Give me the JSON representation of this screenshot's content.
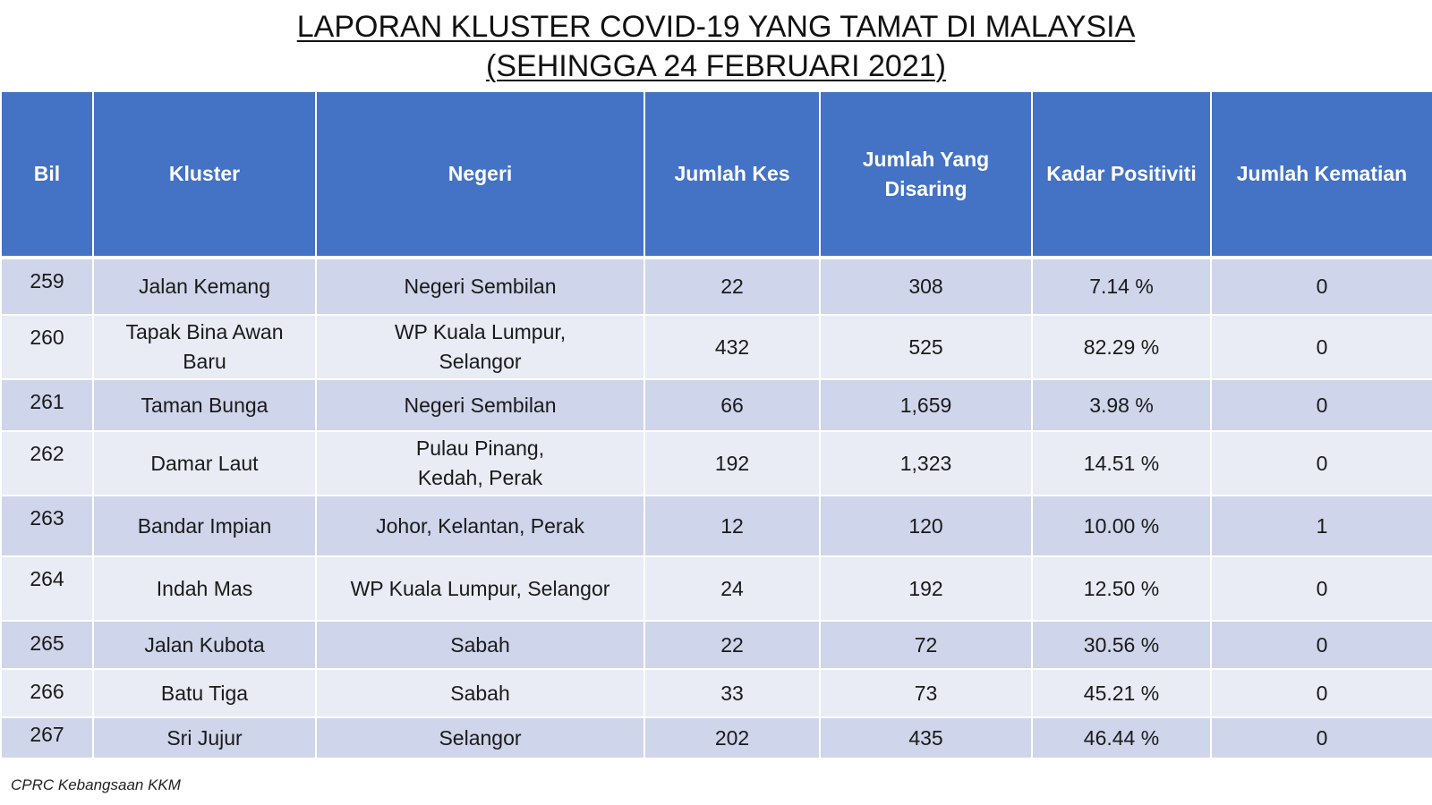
{
  "title": {
    "line1": "LAPORAN KLUSTER COVID-19 YANG TAMAT DI MALAYSIA",
    "line2": "(SEHINGGA  24 FEBRUARI 2021)"
  },
  "table": {
    "headers": [
      "Bil",
      "Kluster",
      "Negeri",
      "Jumlah Kes",
      "Jumlah Yang Disaring",
      "Kadar Positiviti",
      "Jumlah Kematian"
    ],
    "rows": [
      {
        "bil": "259",
        "kluster": "Jalan Kemang",
        "negeri": "Negeri Sembilan",
        "kes": "22",
        "disaring": "308",
        "positiviti": "7.14 %",
        "kematian": "0"
      },
      {
        "bil": "260",
        "kluster": "Tapak Bina Awan Baru",
        "negeri": "WP Kuala Lumpur, Selangor",
        "kes": "432",
        "disaring": "525",
        "positiviti": "82.29 %",
        "kematian": "0"
      },
      {
        "bil": "261",
        "kluster": "Taman Bunga",
        "negeri": "Negeri Sembilan",
        "kes": "66",
        "disaring": "1,659",
        "positiviti": "3.98 %",
        "kematian": "0"
      },
      {
        "bil": "262",
        "kluster": "Damar Laut",
        "negeri": "Pulau Pinang, Kedah, Perak",
        "kes": "192",
        "disaring": "1,323",
        "positiviti": "14.51 %",
        "kematian": "0"
      },
      {
        "bil": "263",
        "kluster": "Bandar Impian",
        "negeri": "Johor, Kelantan, Perak",
        "kes": "12",
        "disaring": "120",
        "positiviti": "10.00 %",
        "kematian": "1"
      },
      {
        "bil": "264",
        "kluster": "Indah Mas",
        "negeri": "WP Kuala Lumpur, Selangor",
        "kes": "24",
        "disaring": "192",
        "positiviti": "12.50 %",
        "kematian": "0"
      },
      {
        "bil": "265",
        "kluster": "Jalan Kubota",
        "negeri": "Sabah",
        "kes": "22",
        "disaring": "72",
        "positiviti": "30.56 %",
        "kematian": "0"
      },
      {
        "bil": "266",
        "kluster": "Batu Tiga",
        "negeri": "Sabah",
        "kes": "33",
        "disaring": "73",
        "positiviti": "45.21 %",
        "kematian": "0"
      },
      {
        "bil": "267",
        "kluster": "Sri Jujur",
        "negeri": "Selangor",
        "kes": "202",
        "disaring": "435",
        "positiviti": "46.44 %",
        "kematian": "0"
      }
    ]
  },
  "footer": "CPRC Kebangsaan KKM",
  "colors": {
    "header_bg": "#4472c4",
    "row_odd": "#cfd5ea",
    "row_even": "#e9ebf5"
  }
}
